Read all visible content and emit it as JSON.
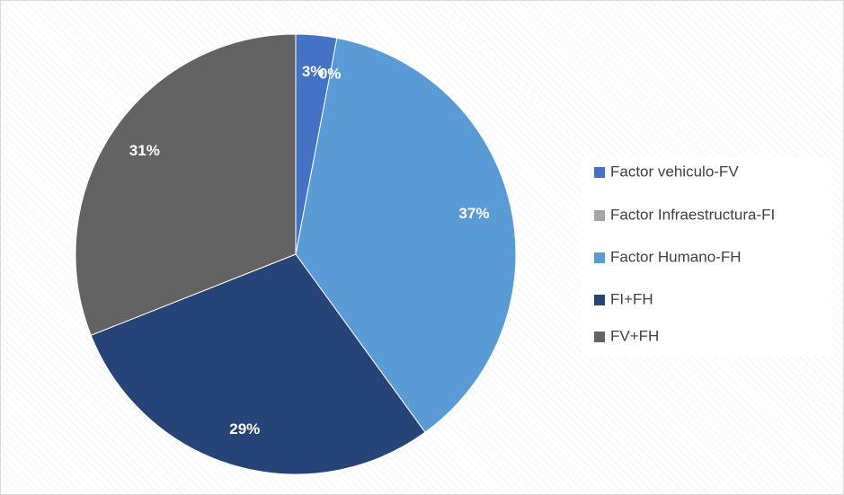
{
  "chart_data": {
    "type": "pie",
    "categories": [
      "Factor vehiculo-FV",
      "Factor Infraestructura-FI",
      "Factor Humano-FH",
      "FI+FH",
      "FV+FH"
    ],
    "values": [
      3,
      0,
      37,
      29,
      31
    ],
    "value_labels": [
      "3%",
      "0%",
      "37%",
      "29%",
      "31%"
    ],
    "colors": [
      "#4472c4",
      "#a5a5a5",
      "#5b9bd5",
      "#264478",
      "#636363"
    ],
    "legend": "right"
  }
}
